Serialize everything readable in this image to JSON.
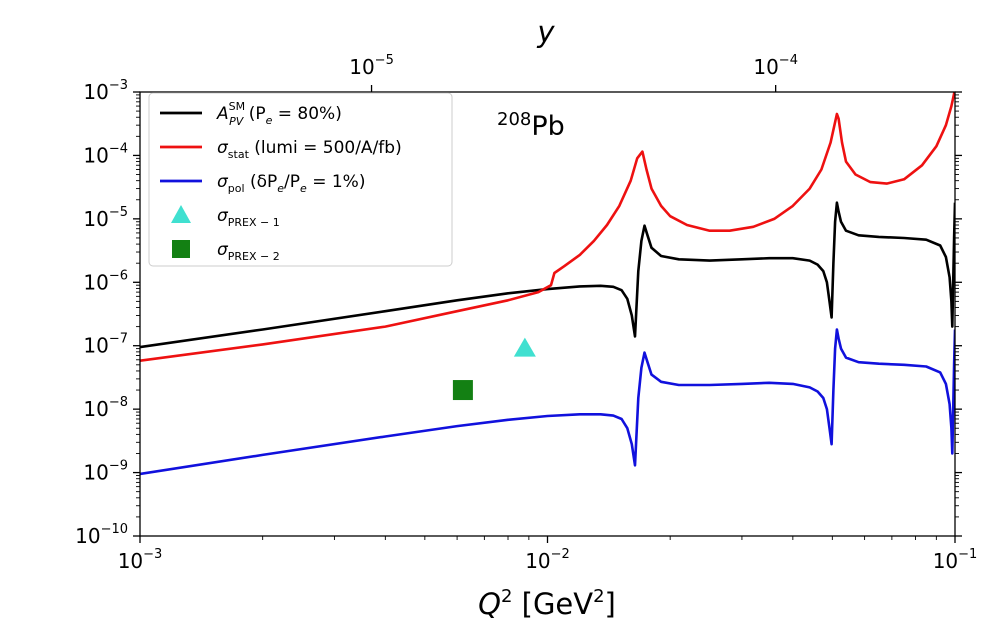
{
  "chart_data": {
    "type": "line",
    "xscale": "log",
    "yscale": "log",
    "xlim": [
      0.001,
      0.1
    ],
    "ylim": [
      1e-10,
      0.001
    ],
    "xlabel": {
      "base": "Q",
      "sup": "2",
      "rest": " [GeV",
      "unit_sup": "2",
      "close": "]"
    },
    "top_axis": {
      "label": "y",
      "ticks": [
        {
          "x": 0.0037,
          "label_base": "10",
          "label_exp": "−5"
        },
        {
          "x": 0.0363,
          "label_base": "10",
          "label_exp": "−4"
        }
      ]
    },
    "x_ticks": [
      {
        "x": 0.001,
        "label_base": "10",
        "label_exp": "−3"
      },
      {
        "x": 0.01,
        "label_base": "10",
        "label_exp": "−2"
      },
      {
        "x": 0.1,
        "label_base": "10",
        "label_exp": "−1"
      }
    ],
    "y_ticks": [
      {
        "y": 0.001,
        "label_base": "10",
        "label_exp": "−3"
      },
      {
        "y": 0.0001,
        "label_base": "10",
        "label_exp": "−4"
      },
      {
        "y": 1e-05,
        "label_base": "10",
        "label_exp": "−5"
      },
      {
        "y": 1e-06,
        "label_base": "10",
        "label_exp": "−6"
      },
      {
        "y": 1e-07,
        "label_base": "10",
        "label_exp": "−7"
      },
      {
        "y": 1e-08,
        "label_base": "10",
        "label_exp": "−8"
      },
      {
        "y": 1e-09,
        "label_base": "10",
        "label_exp": "−9"
      },
      {
        "y": 1e-10,
        "label_base": "10",
        "label_exp": "−10"
      }
    ],
    "annotation": {
      "sup": "208",
      "text": "Pb",
      "x": 0.0055,
      "y": 0.00023
    },
    "legend": {
      "placement": "upper-left",
      "entries": [
        {
          "id": "asm",
          "marker": "line",
          "color": "#000000",
          "label": {
            "main": "A",
            "sub": "PV",
            "sup": "SM",
            "rest": " (P",
            "rest_sub": "e",
            "rest2": " = 80%)"
          }
        },
        {
          "id": "stat",
          "marker": "line",
          "color": "#ee1111",
          "label": {
            "main": "σ",
            "sub": "stat",
            "rest": " (lumi = 500/A/fb)"
          }
        },
        {
          "id": "pol",
          "marker": "line",
          "color": "#1111dd",
          "label": {
            "main": "σ",
            "sub": "pol",
            "rest": " (δP",
            "rest_sub": "e",
            "rest2": "/P",
            "rest_sub2": "e",
            "rest3": " = 1%)"
          }
        },
        {
          "id": "prex1",
          "marker": "triangle",
          "color": "#40e0d0",
          "label": {
            "main": "σ",
            "sub": "PREX − 1"
          }
        },
        {
          "id": "prex2",
          "marker": "square",
          "color": "#138013",
          "label": {
            "main": "σ",
            "sub": "PREX − 2"
          }
        }
      ]
    },
    "series": [
      {
        "id": "asm",
        "color": "#000000",
        "x": [
          0.001,
          0.002,
          0.004,
          0.006,
          0.008,
          0.01,
          0.012,
          0.0135,
          0.0145,
          0.0152,
          0.0157,
          0.0161,
          0.0164,
          0.0167,
          0.017,
          0.0173,
          0.0176,
          0.018,
          0.019,
          0.021,
          0.025,
          0.03,
          0.035,
          0.04,
          0.044,
          0.046,
          0.0475,
          0.0485,
          0.0492,
          0.0498,
          0.0503,
          0.0508,
          0.0513,
          0.0518,
          0.0525,
          0.054,
          0.058,
          0.065,
          0.075,
          0.085,
          0.092,
          0.095,
          0.097,
          0.098,
          0.0985,
          0.099,
          0.0995,
          0.1
        ],
        "y": [
          9.5e-08,
          1.8e-07,
          3.5e-07,
          5.2e-07,
          6.7e-07,
          7.8e-07,
          8.6e-07,
          8.8e-07,
          8.5e-07,
          7.5e-07,
          5.5e-07,
          3e-07,
          1.4e-07,
          1.5e-06,
          4.5e-06,
          7.8e-06,
          5.5e-06,
          3.5e-06,
          2.6e-06,
          2.3e-06,
          2.2e-06,
          2.3e-06,
          2.4e-06,
          2.4e-06,
          2.2e-06,
          1.9e-06,
          1.5e-06,
          1e-06,
          5e-07,
          2.8e-07,
          2e-06,
          9e-06,
          1.8e-05,
          1.3e-05,
          9e-06,
          6.5e-06,
          5.5e-06,
          5.2e-06,
          5e-06,
          4.7e-06,
          3.8e-06,
          2.5e-06,
          1.2e-06,
          5e-07,
          2e-07,
          1e-06,
          5e-06,
          1.8e-05
        ]
      },
      {
        "id": "stat",
        "color": "#ee1111",
        "x": [
          0.001,
          0.002,
          0.004,
          0.006,
          0.008,
          0.0095,
          0.0102,
          0.0104,
          0.011,
          0.012,
          0.013,
          0.014,
          0.015,
          0.016,
          0.0166,
          0.0171,
          0.0175,
          0.018,
          0.019,
          0.02,
          0.022,
          0.025,
          0.028,
          0.032,
          0.036,
          0.04,
          0.044,
          0.047,
          0.0495,
          0.0513,
          0.0518,
          0.0528,
          0.054,
          0.057,
          0.062,
          0.068,
          0.075,
          0.083,
          0.09,
          0.095,
          0.098,
          0.1
        ],
        "y": [
          5.8e-08,
          1.05e-07,
          2e-07,
          3.5e-07,
          5.2e-07,
          7e-07,
          9e-07,
          1.4e-06,
          1.8e-06,
          2.7e-06,
          4.5e-06,
          8e-06,
          1.6e-05,
          4e-05,
          9e-05,
          0.000115,
          6e-05,
          3e-05,
          1.6e-05,
          1.1e-05,
          8e-06,
          6.5e-06,
          6.5e-06,
          7.5e-06,
          1e-05,
          1.6e-05,
          3e-05,
          6e-05,
          0.00016,
          0.00045,
          0.00038,
          0.00016,
          8e-05,
          5e-05,
          3.8e-05,
          3.6e-05,
          4.2e-05,
          7e-05,
          0.00014,
          0.0003,
          0.0006,
          0.0011
        ]
      },
      {
        "id": "pol",
        "color": "#1111dd",
        "x": [
          0.001,
          0.002,
          0.004,
          0.006,
          0.008,
          0.01,
          0.012,
          0.0135,
          0.0145,
          0.0152,
          0.0157,
          0.0161,
          0.0164,
          0.0167,
          0.017,
          0.0173,
          0.0176,
          0.018,
          0.019,
          0.021,
          0.025,
          0.03,
          0.035,
          0.04,
          0.044,
          0.046,
          0.0475,
          0.0485,
          0.0492,
          0.0498,
          0.0503,
          0.0508,
          0.0513,
          0.0518,
          0.0525,
          0.054,
          0.058,
          0.065,
          0.075,
          0.085,
          0.092,
          0.095,
          0.097,
          0.098,
          0.0985,
          0.099,
          0.0995,
          0.1
        ],
        "y": [
          9.5e-10,
          1.9e-09,
          3.7e-09,
          5.4e-09,
          6.8e-09,
          7.8e-09,
          8.3e-09,
          8.3e-09,
          7.9e-09,
          7e-09,
          5e-09,
          2.8e-09,
          1.3e-09,
          1.5e-08,
          4.5e-08,
          7.8e-08,
          5.5e-08,
          3.5e-08,
          2.7e-08,
          2.4e-08,
          2.4e-08,
          2.5e-08,
          2.6e-08,
          2.5e-08,
          2.2e-08,
          1.9e-08,
          1.5e-08,
          1e-08,
          5e-09,
          2.8e-09,
          2e-08,
          9e-08,
          1.8e-07,
          1.3e-07,
          9e-08,
          6.5e-08,
          5.5e-08,
          5.2e-08,
          5e-08,
          4.7e-08,
          3.8e-08,
          2.5e-08,
          1.2e-08,
          5e-09,
          2e-09,
          1e-08,
          5e-08,
          1.8e-07
        ]
      }
    ],
    "points": [
      {
        "id": "prex1",
        "marker": "triangle",
        "color": "#40e0d0",
        "x": 0.0088,
        "y": 9e-08
      },
      {
        "id": "prex2",
        "marker": "square",
        "color": "#138013",
        "x": 0.0062,
        "y": 2e-08
      }
    ]
  }
}
